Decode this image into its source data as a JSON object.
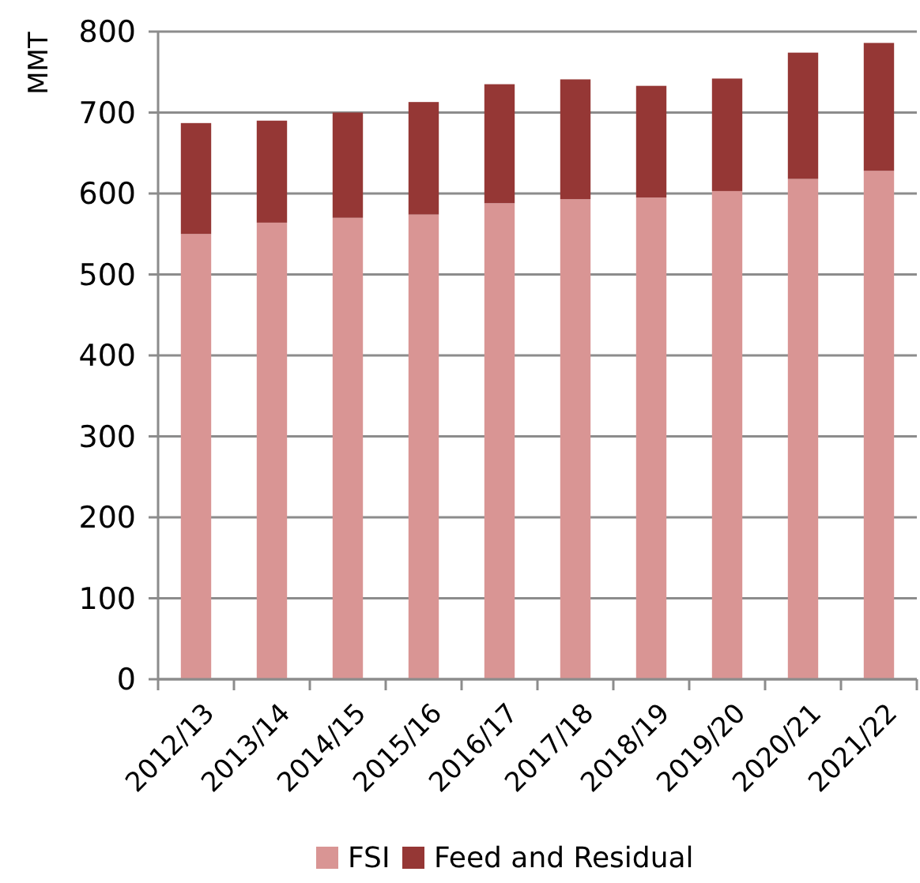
{
  "chart_data": {
    "type": "bar",
    "stacked": true,
    "ylabel": "MMT",
    "categories": [
      "2012/13",
      "2013/14",
      "2014/15",
      "2015/16",
      "2016/17",
      "2017/18",
      "2018/19",
      "2019/20",
      "2020/21",
      "2021/22"
    ],
    "series": [
      {
        "name": "FSI",
        "color": "#d99594",
        "values": [
          550,
          564,
          570,
          574,
          588,
          593,
          595,
          603,
          618,
          628
        ]
      },
      {
        "name": "Feed and Residual",
        "color": "#953735",
        "values": [
          137,
          126,
          130,
          139,
          147,
          148,
          138,
          139,
          156,
          158
        ]
      }
    ],
    "ylim": [
      0,
      800
    ],
    "yticks": [
      0,
      100,
      200,
      300,
      400,
      500,
      600,
      700,
      800
    ],
    "grid": "y",
    "legend": "bottom"
  }
}
